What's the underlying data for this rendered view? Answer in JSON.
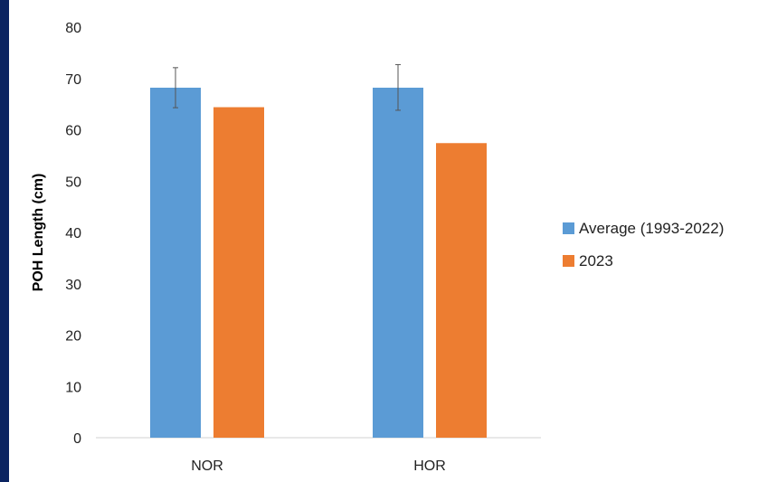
{
  "chart_data": {
    "type": "bar",
    "categories": [
      "NOR",
      "HOR"
    ],
    "series": [
      {
        "name": "Average (1993-2022)",
        "color": "#5b9bd5",
        "values": [
          68.2,
          68.2
        ],
        "error_low": [
          64.3,
          63.8
        ],
        "error_high": [
          72.1,
          72.7
        ]
      },
      {
        "name": "2023",
        "color": "#ed7d31",
        "values": [
          64.4,
          57.4
        ]
      }
    ],
    "ylabel": "POH Length (cm)",
    "xlabel": "",
    "ylim": [
      0,
      80
    ],
    "yticks": [
      0,
      10,
      20,
      30,
      40,
      50,
      60,
      70,
      80
    ],
    "grid": false,
    "legend": "right"
  }
}
